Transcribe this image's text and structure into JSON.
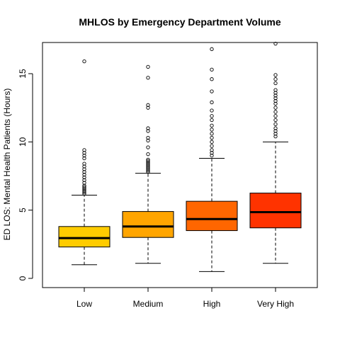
{
  "chart_data": {
    "type": "box",
    "title": "MHLOS by Emergency Department Volume",
    "xlabel": "",
    "ylabel": "ED LOS: Mental Health Patients (Hours)",
    "ylim": [
      -0.7,
      17.3
    ],
    "yticks": [
      0,
      5,
      10,
      15
    ],
    "categories": [
      "Low",
      "Medium",
      "High",
      "Very High"
    ],
    "colors": [
      "#FFCC00",
      "#FFA500",
      "#FF6600",
      "#FF3300"
    ],
    "boxes": [
      {
        "category": "Low",
        "whisker_low": 1.0,
        "q1": 2.3,
        "median": 2.95,
        "q3": 3.8,
        "whisker_high": 6.1,
        "outliers": [
          6.2,
          6.3,
          6.4,
          6.5,
          6.6,
          6.7,
          6.8,
          7.0,
          7.2,
          7.4,
          7.6,
          7.8,
          8.0,
          8.2,
          8.4,
          8.8,
          9.0,
          9.2,
          9.4,
          15.9
        ]
      },
      {
        "category": "Medium",
        "whisker_low": 1.1,
        "q1": 3.0,
        "median": 3.8,
        "q3": 4.9,
        "whisker_high": 7.7,
        "outliers": [
          7.8,
          7.9,
          8.0,
          8.1,
          8.2,
          8.3,
          8.4,
          8.5,
          8.6,
          8.7,
          9.1,
          9.6,
          10.1,
          10.3,
          10.8,
          11.0,
          12.5,
          12.7,
          14.7,
          15.5
        ]
      },
      {
        "category": "High",
        "whisker_low": 0.5,
        "q1": 3.5,
        "median": 4.35,
        "q3": 5.65,
        "whisker_high": 8.8,
        "outliers": [
          9.0,
          9.2,
          9.4,
          9.7,
          10.0,
          10.3,
          10.6,
          10.9,
          11.2,
          11.6,
          11.9,
          12.3,
          12.9,
          13.7,
          14.6,
          15.3,
          16.8
        ]
      },
      {
        "category": "Very High",
        "whisker_low": 1.1,
        "q1": 3.7,
        "median": 4.85,
        "q3": 6.25,
        "whisker_high": 10.0,
        "outliers": [
          10.4,
          10.6,
          10.8,
          11.0,
          11.3,
          11.6,
          11.9,
          12.2,
          12.5,
          12.8,
          13.0,
          13.2,
          13.4,
          13.6,
          13.8,
          14.3,
          14.6,
          14.9,
          17.2
        ]
      }
    ]
  }
}
